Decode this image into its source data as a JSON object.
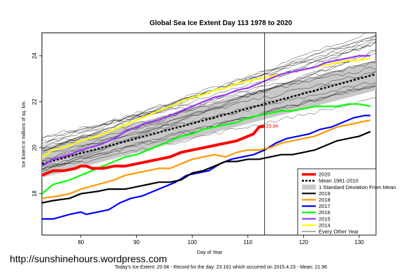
{
  "chart_data": {
    "type": "line",
    "title": "Global Sea Ice Extent Day 113 1978 to 2020",
    "xlabel": "Day of Year",
    "ylabel": "Ice Extent in millions of sq. km.",
    "xlim": [
      73,
      133
    ],
    "ylim": [
      16.2,
      25.0
    ],
    "xticks": [
      80,
      90,
      100,
      110,
      120,
      130
    ],
    "yticks": [
      18,
      20,
      22,
      24
    ],
    "vline_x": 113,
    "annotation": {
      "text": "20.94",
      "x": 113,
      "y": 20.94
    },
    "legend_position": "bottom-right",
    "footer_url": "http://sunshinehours.wordpress.com",
    "footer_note": "Today's Ice Extent: 20.94  - Record for the day: 23.161 which occurred on 2015.4.23  - Mean: 21.96",
    "band": {
      "name": "1 Standard Deviation From Mean",
      "x": [
        73,
        133
      ],
      "lower": [
        18.7,
        22.5
      ],
      "upper": [
        20.0,
        23.8
      ]
    },
    "series": [
      {
        "name": "2020",
        "color": "#ff0000",
        "x": [
          73,
          75,
          77,
          79,
          80,
          81,
          82,
          84,
          86,
          88,
          90,
          92,
          94,
          96,
          98,
          100,
          102,
          104,
          106,
          108,
          110,
          111,
          112,
          113
        ],
        "y": [
          18.8,
          19.0,
          19.0,
          19.1,
          19.2,
          19.2,
          19.1,
          19.1,
          19.2,
          19.2,
          19.3,
          19.4,
          19.5,
          19.6,
          19.8,
          19.9,
          20.0,
          20.1,
          20.2,
          20.3,
          20.5,
          20.6,
          20.9,
          20.94
        ]
      },
      {
        "name": "Mean 1981-2010",
        "color": "#000000",
        "x": [
          73,
          133
        ],
        "y": [
          19.3,
          23.2
        ]
      },
      {
        "name": "2019",
        "color": "#000000",
        "x": [
          73,
          75,
          78,
          80,
          83,
          85,
          88,
          90,
          92,
          94,
          96,
          98,
          100,
          102,
          104,
          106,
          108,
          110,
          112,
          114,
          116,
          118,
          120,
          122,
          124,
          126,
          128,
          130,
          132
        ],
        "y": [
          17.6,
          17.7,
          17.8,
          18.0,
          18.1,
          18.2,
          18.2,
          18.3,
          18.4,
          18.5,
          18.5,
          18.6,
          18.9,
          19.0,
          19.2,
          19.4,
          19.4,
          19.5,
          19.5,
          19.6,
          19.7,
          19.7,
          19.8,
          19.9,
          20.1,
          20.3,
          20.4,
          20.5,
          20.7
        ]
      },
      {
        "name": "2018",
        "color": "#ff9900",
        "x": [
          73,
          76,
          78,
          80,
          83,
          86,
          88,
          90,
          92,
          94,
          96,
          98,
          100,
          102,
          104,
          106,
          108,
          110,
          112,
          114,
          116,
          118,
          120,
          122,
          124,
          126,
          128,
          130,
          132
        ],
        "y": [
          17.8,
          17.9,
          18.0,
          18.2,
          18.4,
          18.6,
          18.8,
          18.9,
          19.0,
          19.1,
          19.1,
          19.3,
          19.5,
          19.6,
          19.7,
          19.6,
          19.8,
          19.9,
          19.9,
          20.0,
          20.2,
          20.3,
          20.4,
          20.5,
          20.7,
          20.9,
          21.0,
          21.1,
          21.2
        ]
      },
      {
        "name": "2017",
        "color": "#0000ff",
        "x": [
          73,
          75,
          78,
          80,
          81,
          83,
          85,
          87,
          89,
          91,
          93,
          95,
          97,
          99,
          101,
          103,
          105,
          107,
          109,
          111,
          113,
          115,
          117,
          119,
          121,
          123,
          125,
          127,
          129,
          131,
          132
        ],
        "y": [
          16.9,
          16.9,
          17.1,
          17.2,
          17.1,
          17.2,
          17.3,
          17.6,
          17.8,
          17.9,
          18.1,
          18.3,
          18.5,
          18.8,
          18.9,
          19.0,
          19.3,
          19.5,
          19.6,
          19.7,
          19.9,
          20.2,
          20.4,
          20.5,
          20.6,
          20.8,
          20.9,
          21.1,
          21.3,
          21.4,
          21.4
        ]
      },
      {
        "name": "2016",
        "color": "#00ff00",
        "x": [
          73,
          75,
          78,
          80,
          82,
          84,
          86,
          88,
          90,
          92,
          94,
          96,
          98,
          100,
          102,
          104,
          106,
          108,
          110,
          112,
          114,
          116,
          118,
          120,
          122,
          124,
          126,
          128,
          130,
          132
        ],
        "y": [
          18.0,
          18.4,
          18.6,
          18.8,
          19.0,
          19.2,
          19.4,
          19.6,
          19.7,
          19.9,
          20.1,
          20.3,
          20.5,
          20.6,
          20.8,
          20.9,
          21.0,
          21.1,
          21.3,
          21.4,
          21.5,
          21.6,
          21.6,
          21.7,
          21.8,
          21.8,
          21.8,
          21.9,
          21.9,
          21.8
        ]
      },
      {
        "name": "2015",
        "color": "#9933ff",
        "x": [
          73,
          75,
          78,
          80,
          83,
          86,
          88,
          90,
          92,
          94,
          96,
          98,
          100,
          102,
          104,
          106,
          108,
          110,
          112,
          114,
          116,
          118,
          120,
          122,
          124,
          126,
          128,
          130,
          132
        ],
        "y": [
          19.2,
          19.5,
          19.7,
          19.9,
          20.1,
          20.4,
          20.7,
          20.9,
          21.1,
          21.2,
          21.4,
          21.6,
          21.8,
          22.0,
          22.2,
          22.3,
          22.5,
          22.6,
          22.8,
          23.0,
          23.2,
          23.3,
          23.4,
          23.5,
          23.7,
          23.8,
          23.9,
          24.0,
          24.0
        ]
      },
      {
        "name": "2014",
        "color": "#ffff00",
        "x": [
          73,
          75,
          78,
          80,
          83,
          86,
          88,
          90,
          92,
          94,
          96,
          98,
          100,
          102,
          104,
          106,
          108,
          110,
          112,
          114,
          116,
          118,
          120,
          122,
          124,
          126,
          128,
          130,
          132
        ],
        "y": [
          19.6,
          19.9,
          20.1,
          20.3,
          20.5,
          20.8,
          21.0,
          21.2,
          21.4,
          21.6,
          21.8,
          22.0,
          22.2,
          22.3,
          22.5,
          22.6,
          22.8,
          22.9,
          23.0,
          23.1,
          23.2,
          23.3,
          23.4,
          23.5,
          23.6,
          23.7,
          23.8,
          23.8,
          23.9
        ]
      },
      {
        "name": "Every Other Year",
        "color": "#000000"
      }
    ]
  }
}
